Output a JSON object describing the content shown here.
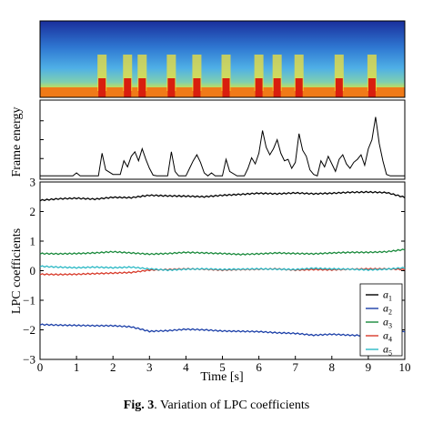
{
  "caption": {
    "label": "Fig. 3",
    "text": ". Variation of LPC coefficients"
  },
  "chart_data": [
    {
      "type": "heatmap",
      "panel": "spectrogram",
      "x_range": [
        0,
        10
      ],
      "colormap": [
        "#1a1f8c",
        "#2a6fd4",
        "#4fb4e8",
        "#8fd8a0",
        "#f2e23a",
        "#f07a18",
        "#d81e0e"
      ],
      "high_energy_times": [
        1.7,
        2.4,
        2.8,
        3.6,
        4.3,
        5.1,
        6.0,
        6.5,
        7.1,
        8.2,
        9.1
      ]
    },
    {
      "type": "line",
      "panel": "energy",
      "ylabel": "Frame energy",
      "x_range": [
        0,
        10
      ],
      "x": [
        0.0,
        0.9,
        1.0,
        1.1,
        1.6,
        1.7,
        1.8,
        2.0,
        2.2,
        2.3,
        2.4,
        2.5,
        2.6,
        2.7,
        2.8,
        2.9,
        3.0,
        3.1,
        3.2,
        3.5,
        3.6,
        3.7,
        3.8,
        4.0,
        4.1,
        4.2,
        4.3,
        4.4,
        4.5,
        4.6,
        4.7,
        4.8,
        5.0,
        5.1,
        5.2,
        5.4,
        5.6,
        5.7,
        5.8,
        5.9,
        6.0,
        6.1,
        6.2,
        6.3,
        6.4,
        6.5,
        6.6,
        6.7,
        6.8,
        6.9,
        7.0,
        7.1,
        7.2,
        7.3,
        7.4,
        7.5,
        7.6,
        7.7,
        7.8,
        7.9,
        8.0,
        8.1,
        8.2,
        8.3,
        8.4,
        8.5,
        8.6,
        8.7,
        8.8,
        8.9,
        9.0,
        9.1,
        9.2,
        9.3,
        9.4,
        9.5,
        9.6,
        10.0
      ],
      "y": [
        0.02,
        0.02,
        0.06,
        0.02,
        0.02,
        0.32,
        0.1,
        0.04,
        0.04,
        0.22,
        0.14,
        0.28,
        0.34,
        0.22,
        0.38,
        0.24,
        0.12,
        0.03,
        0.02,
        0.02,
        0.34,
        0.08,
        0.02,
        0.02,
        0.12,
        0.22,
        0.3,
        0.2,
        0.06,
        0.02,
        0.06,
        0.02,
        0.02,
        0.24,
        0.08,
        0.02,
        0.02,
        0.12,
        0.26,
        0.18,
        0.32,
        0.62,
        0.4,
        0.3,
        0.38,
        0.5,
        0.32,
        0.22,
        0.24,
        0.12,
        0.2,
        0.58,
        0.36,
        0.28,
        0.1,
        0.04,
        0.02,
        0.22,
        0.14,
        0.28,
        0.18,
        0.08,
        0.24,
        0.3,
        0.18,
        0.12,
        0.2,
        0.24,
        0.3,
        0.16,
        0.38,
        0.5,
        0.8,
        0.45,
        0.22,
        0.04,
        0.02,
        0.02
      ]
    },
    {
      "type": "line",
      "panel": "lpc",
      "ylabel": "LPC coefficients",
      "xlabel": "Time [s]",
      "xlim": [
        0,
        10
      ],
      "ylim": [
        -3,
        3
      ],
      "x_ticks": [
        "0",
        "1",
        "2",
        "3",
        "4",
        "5",
        "6",
        "7",
        "8",
        "9",
        "10"
      ],
      "y_ticks": [
        "3",
        "2",
        "1",
        "0",
        "−1",
        "−2",
        "−3"
      ],
      "legend_position": "bottom-right",
      "series": [
        {
          "name": "a",
          "sub": "1",
          "color": "#000000",
          "x": [
            0,
            0.5,
            1,
            1.5,
            2,
            2.5,
            3,
            3.5,
            4,
            4.5,
            5,
            5.5,
            6,
            6.5,
            7,
            7.5,
            8,
            8.5,
            9,
            9.5,
            10
          ],
          "y": [
            2.38,
            2.43,
            2.45,
            2.42,
            2.48,
            2.47,
            2.55,
            2.53,
            2.52,
            2.5,
            2.55,
            2.58,
            2.62,
            2.6,
            2.63,
            2.6,
            2.62,
            2.65,
            2.66,
            2.64,
            2.48
          ]
        },
        {
          "name": "a",
          "sub": "2",
          "color": "#1b3fa8",
          "x": [
            0,
            0.5,
            1,
            1.5,
            2,
            2.5,
            3,
            3.5,
            4,
            4.5,
            5,
            5.5,
            6,
            6.5,
            7,
            7.5,
            8,
            8.5,
            9,
            9.5,
            10
          ],
          "y": [
            -1.82,
            -1.84,
            -1.85,
            -1.86,
            -1.86,
            -1.9,
            -2.05,
            -2.03,
            -1.98,
            -2.0,
            -2.04,
            -2.05,
            -2.06,
            -2.1,
            -2.12,
            -2.18,
            -2.15,
            -2.18,
            -2.2,
            -2.2,
            -2.05
          ]
        },
        {
          "name": "a",
          "sub": "3",
          "color": "#1a8a3c",
          "x": [
            0,
            0.5,
            1,
            1.5,
            2,
            2.5,
            3,
            3.5,
            4,
            4.5,
            5,
            5.5,
            6,
            6.5,
            7,
            7.5,
            8,
            8.5,
            9,
            9.5,
            10
          ],
          "y": [
            0.58,
            0.57,
            0.58,
            0.6,
            0.64,
            0.6,
            0.56,
            0.58,
            0.62,
            0.6,
            0.58,
            0.55,
            0.57,
            0.6,
            0.58,
            0.57,
            0.6,
            0.62,
            0.62,
            0.64,
            0.72
          ]
        },
        {
          "name": "a",
          "sub": "4",
          "color": "#d83a2a",
          "x": [
            0,
            0.5,
            1,
            1.5,
            2,
            2.5,
            3,
            3.5,
            4,
            4.5,
            5,
            5.5,
            6,
            6.5,
            7,
            7.5,
            8,
            8.5,
            9,
            9.5,
            10
          ],
          "y": [
            -0.12,
            -0.13,
            -0.12,
            -0.1,
            -0.08,
            -0.06,
            0.02,
            0.04,
            0.06,
            0.05,
            0.02,
            0.04,
            0.05,
            0.06,
            0.02,
            0.04,
            0.03,
            0.05,
            0.06,
            0.06,
            0.04
          ]
        },
        {
          "name": "a",
          "sub": "5",
          "color": "#2ab8c4",
          "x": [
            0,
            0.5,
            1,
            1.5,
            2,
            2.5,
            3,
            3.5,
            4,
            4.5,
            5,
            5.5,
            6,
            6.5,
            7,
            7.5,
            8,
            8.5,
            9,
            9.5,
            10
          ],
          "y": [
            0.15,
            0.12,
            0.1,
            0.12,
            0.1,
            0.12,
            0.06,
            0.02,
            0.05,
            0.06,
            0.04,
            0.05,
            0.06,
            0.05,
            0.04,
            0.08,
            0.06,
            0.05,
            0.03,
            0.05,
            0.1
          ]
        }
      ]
    }
  ]
}
